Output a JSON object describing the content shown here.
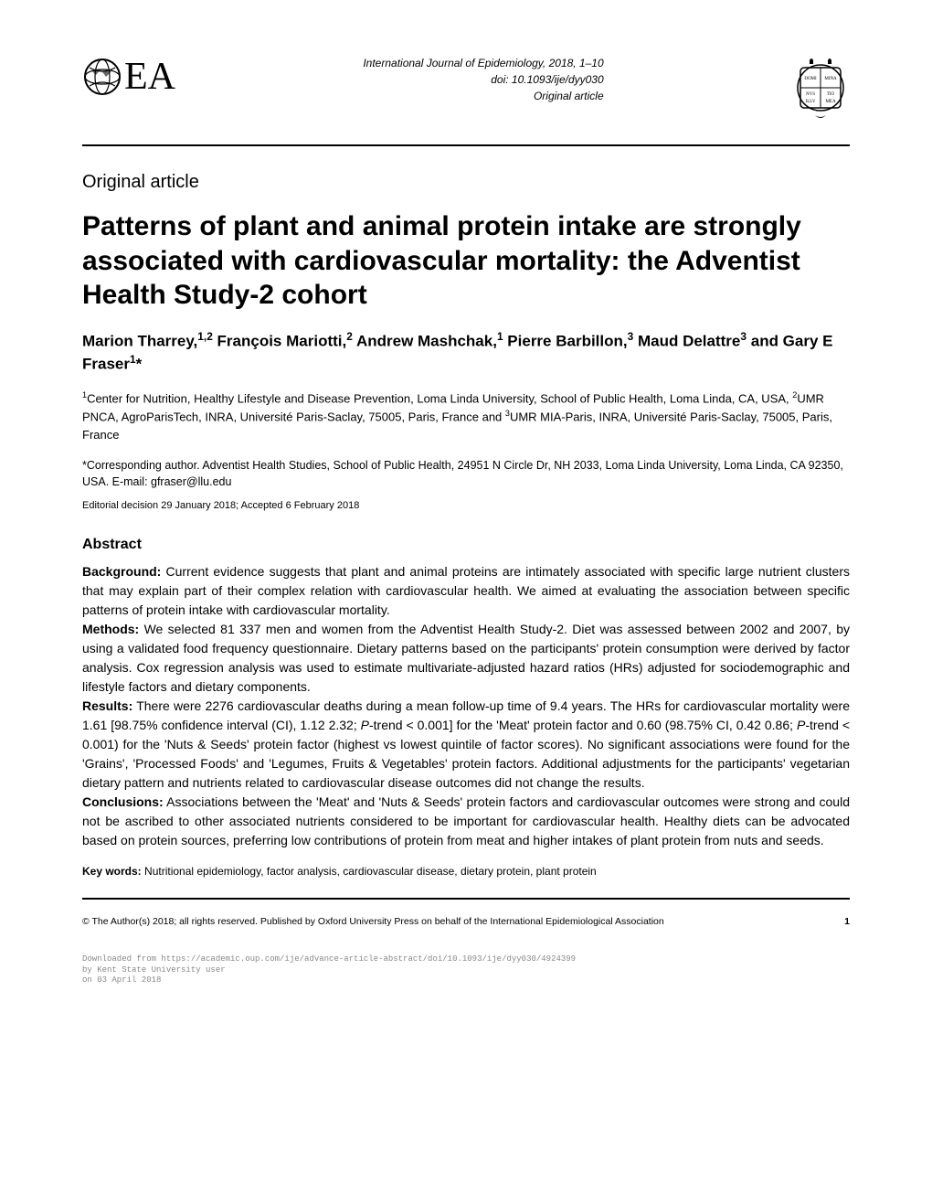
{
  "header": {
    "journal": "International Journal of Epidemiology",
    "year_pages": ", 2018, 1–10",
    "doi": "doi: 10.1093/ije/dyy030",
    "type_small": "Original article"
  },
  "logo_right": {
    "cells": [
      "OXFORD",
      "MRINA",
      "MYR",
      "TYO",
      "ELLY",
      "AYIZ"
    ],
    "crown_color": "#000000",
    "border_color": "#000000"
  },
  "article_type": "Original article",
  "title": "Patterns of plant and animal protein intake are strongly associated with cardiovascular mortality: the Adventist Health Study-2 cohort",
  "authors_html": "Marion Tharrey,<sup>1,2</sup> François Mariotti,<sup>2</sup> Andrew Mashchak,<sup>1</sup> Pierre Barbillon,<sup>3</sup> Maud Delattre<sup>3</sup> and Gary E Fraser<sup>1</sup>*",
  "affiliations_html": "<sup>1</sup>Center for Nutrition, Healthy Lifestyle and Disease Prevention, Loma Linda University, School of Public Health, Loma Linda, CA, USA, <sup>2</sup>UMR PNCA, AgroParisTech, INRA, Université Paris-Saclay, 75005, Paris, France and <sup>3</sup>UMR MIA-Paris, INRA, Université Paris-Saclay, 75005, Paris, France",
  "corresponding": "*Corresponding author. Adventist Health Studies, School of Public Health, 24951 N Circle Dr, NH 2033, Loma Linda University, Loma Linda, CA 92350, USA. E-mail: gfraser@llu.edu",
  "editorial": "Editorial decision 29 January 2018; Accepted 6 February 2018",
  "abstract": {
    "heading": "Abstract",
    "background_label": "Background:",
    "background": " Current evidence suggests that plant and animal proteins are intimately associated with specific large nutrient clusters that may explain part of their complex relation with cardiovascular health. We aimed at evaluating the association between specific patterns of protein intake with cardiovascular mortality.",
    "methods_label": "Methods:",
    "methods": " We selected 81 337 men and women from the Adventist Health Study-2. Diet was assessed between 2002 and 2007, by using a validated food frequency questionnaire. Dietary patterns based on the participants' protein consumption were derived by factor analysis. Cox regression analysis was used to estimate multivariate-adjusted hazard ratios (HRs) adjusted for sociodemographic and lifestyle factors and dietary components.",
    "results_label": "Results:",
    "results_html": " There were 2276 cardiovascular deaths during a mean follow-up time of 9.4 years. The HRs for cardiovascular mortality were 1.61 [98.75% confidence interval (CI), 1.12 2.32; <i>P</i>-trend &lt; 0.001] for the 'Meat' protein factor and 0.60 (98.75% CI, 0.42 0.86; <i>P</i>-trend &lt; 0.001) for the 'Nuts &amp; Seeds' protein factor (highest vs lowest quintile of factor scores). No significant associations were found for the 'Grains', 'Processed Foods' and 'Legumes, Fruits &amp; Vegetables' protein factors. Additional adjustments for the participants' vegetarian dietary pattern and nutrients related to cardiovascular disease outcomes did not change the results.",
    "conclusions_label": "Conclusions:",
    "conclusions": " Associations between the 'Meat' and 'Nuts & Seeds' protein factors and cardiovascular outcomes were strong and could not be ascribed to other associated nutrients considered to be important for cardiovascular health. Healthy diets can be advocated based on protein sources, preferring low contributions of protein from meat and higher intakes of plant protein from nuts and seeds."
  },
  "keywords": {
    "label": "Key words:",
    "text": " Nutritional epidemiology, factor analysis, cardiovascular disease, dietary protein, plant protein"
  },
  "footer": {
    "copyright": "© The Author(s) 2018; all rights reserved. Published by Oxford University Press on behalf of the International Epidemiological Association",
    "page": "1"
  },
  "download": {
    "line1": "Downloaded from https://academic.oup.com/ije/advance-article-abstract/doi/10.1093/ije/dyy030/4924399",
    "line2": "by Kent State University user",
    "line3": "on 03 April 2018"
  }
}
